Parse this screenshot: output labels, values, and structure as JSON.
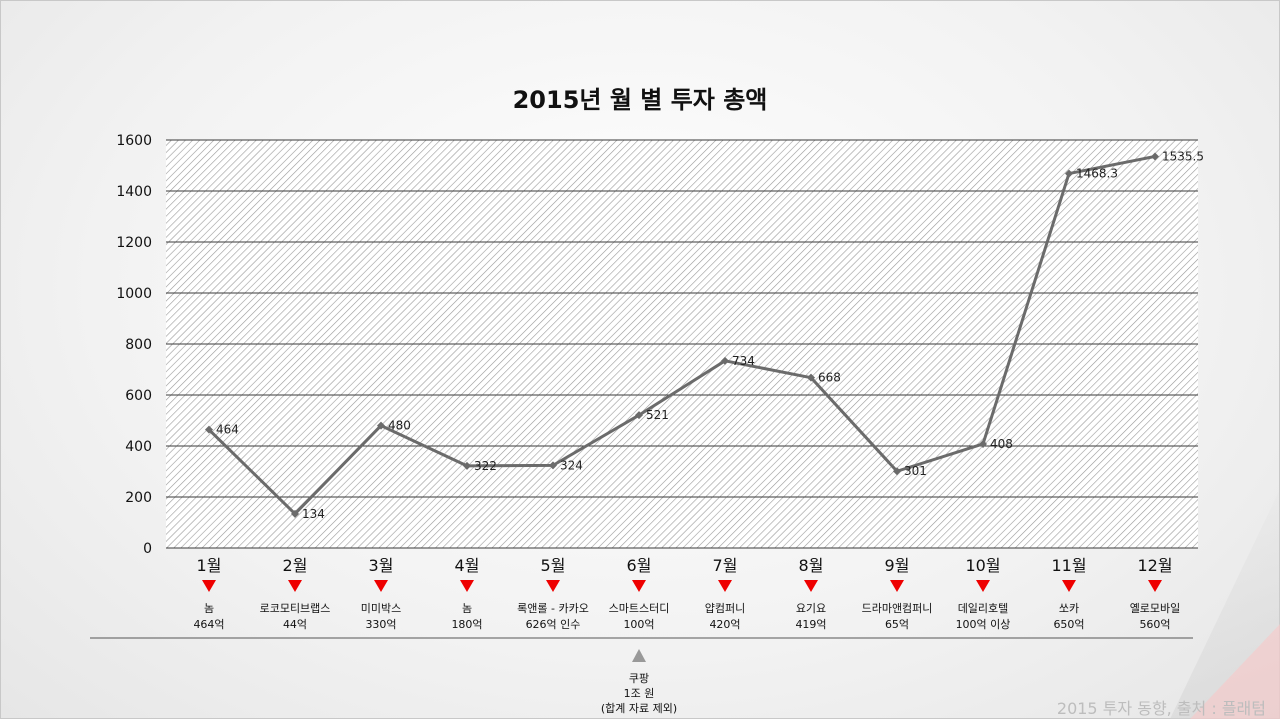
{
  "chart_data": {
    "type": "line",
    "title": "2015년 월 별 투자 총액",
    "categories": [
      "1월",
      "2월",
      "3월",
      "4월",
      "5월",
      "6월",
      "7월",
      "8월",
      "9월",
      "10월",
      "11월",
      "12월"
    ],
    "values": [
      464,
      134,
      480,
      322,
      324,
      521,
      734,
      668,
      301,
      408,
      1468.3,
      1535.5
    ],
    "data_labels": [
      "464",
      "134",
      "480",
      "322",
      "324",
      "521",
      "734",
      "668",
      "301",
      "408",
      "1468.3",
      "1535.5"
    ],
    "ylim": [
      0,
      1600
    ],
    "yticks": [
      "0",
      "200",
      "400",
      "600",
      "800",
      "1000",
      "1200",
      "1400",
      "1600"
    ],
    "grid": true,
    "line_color": "#6b6b6b",
    "marker_color": "#6b6b6b",
    "arrow_color": "#ee0000",
    "notes": [
      {
        "line1": "놈",
        "line2": "464억"
      },
      {
        "line1": "로코모티브랩스",
        "line2": "44억"
      },
      {
        "line1": "미미박스",
        "line2": "330억"
      },
      {
        "line1": "놈",
        "line2": "180억"
      },
      {
        "line1": "록앤롤 - 카카오",
        "line2": "626억 인수"
      },
      {
        "line1": "스마트스터디",
        "line2": "100억"
      },
      {
        "line1": "얍컴퍼니",
        "line2": "420억"
      },
      {
        "line1": "요기요",
        "line2": "419억"
      },
      {
        "line1": "드라마앤컴퍼니",
        "line2": "65억"
      },
      {
        "line1": "데일리호텔",
        "line2": "100억 이상"
      },
      {
        "line1": "쏘카",
        "line2": "650억"
      },
      {
        "line1": "옐로모바일",
        "line2": "560억"
      }
    ],
    "excluded_note": {
      "line1": "쿠팡",
      "line2": "1조 원",
      "line3": "(합계 자료 제외)",
      "month_index": 5,
      "arrow_color": "#999999"
    }
  },
  "footer": "2015 투자 동향, 출처 : 플래텀"
}
